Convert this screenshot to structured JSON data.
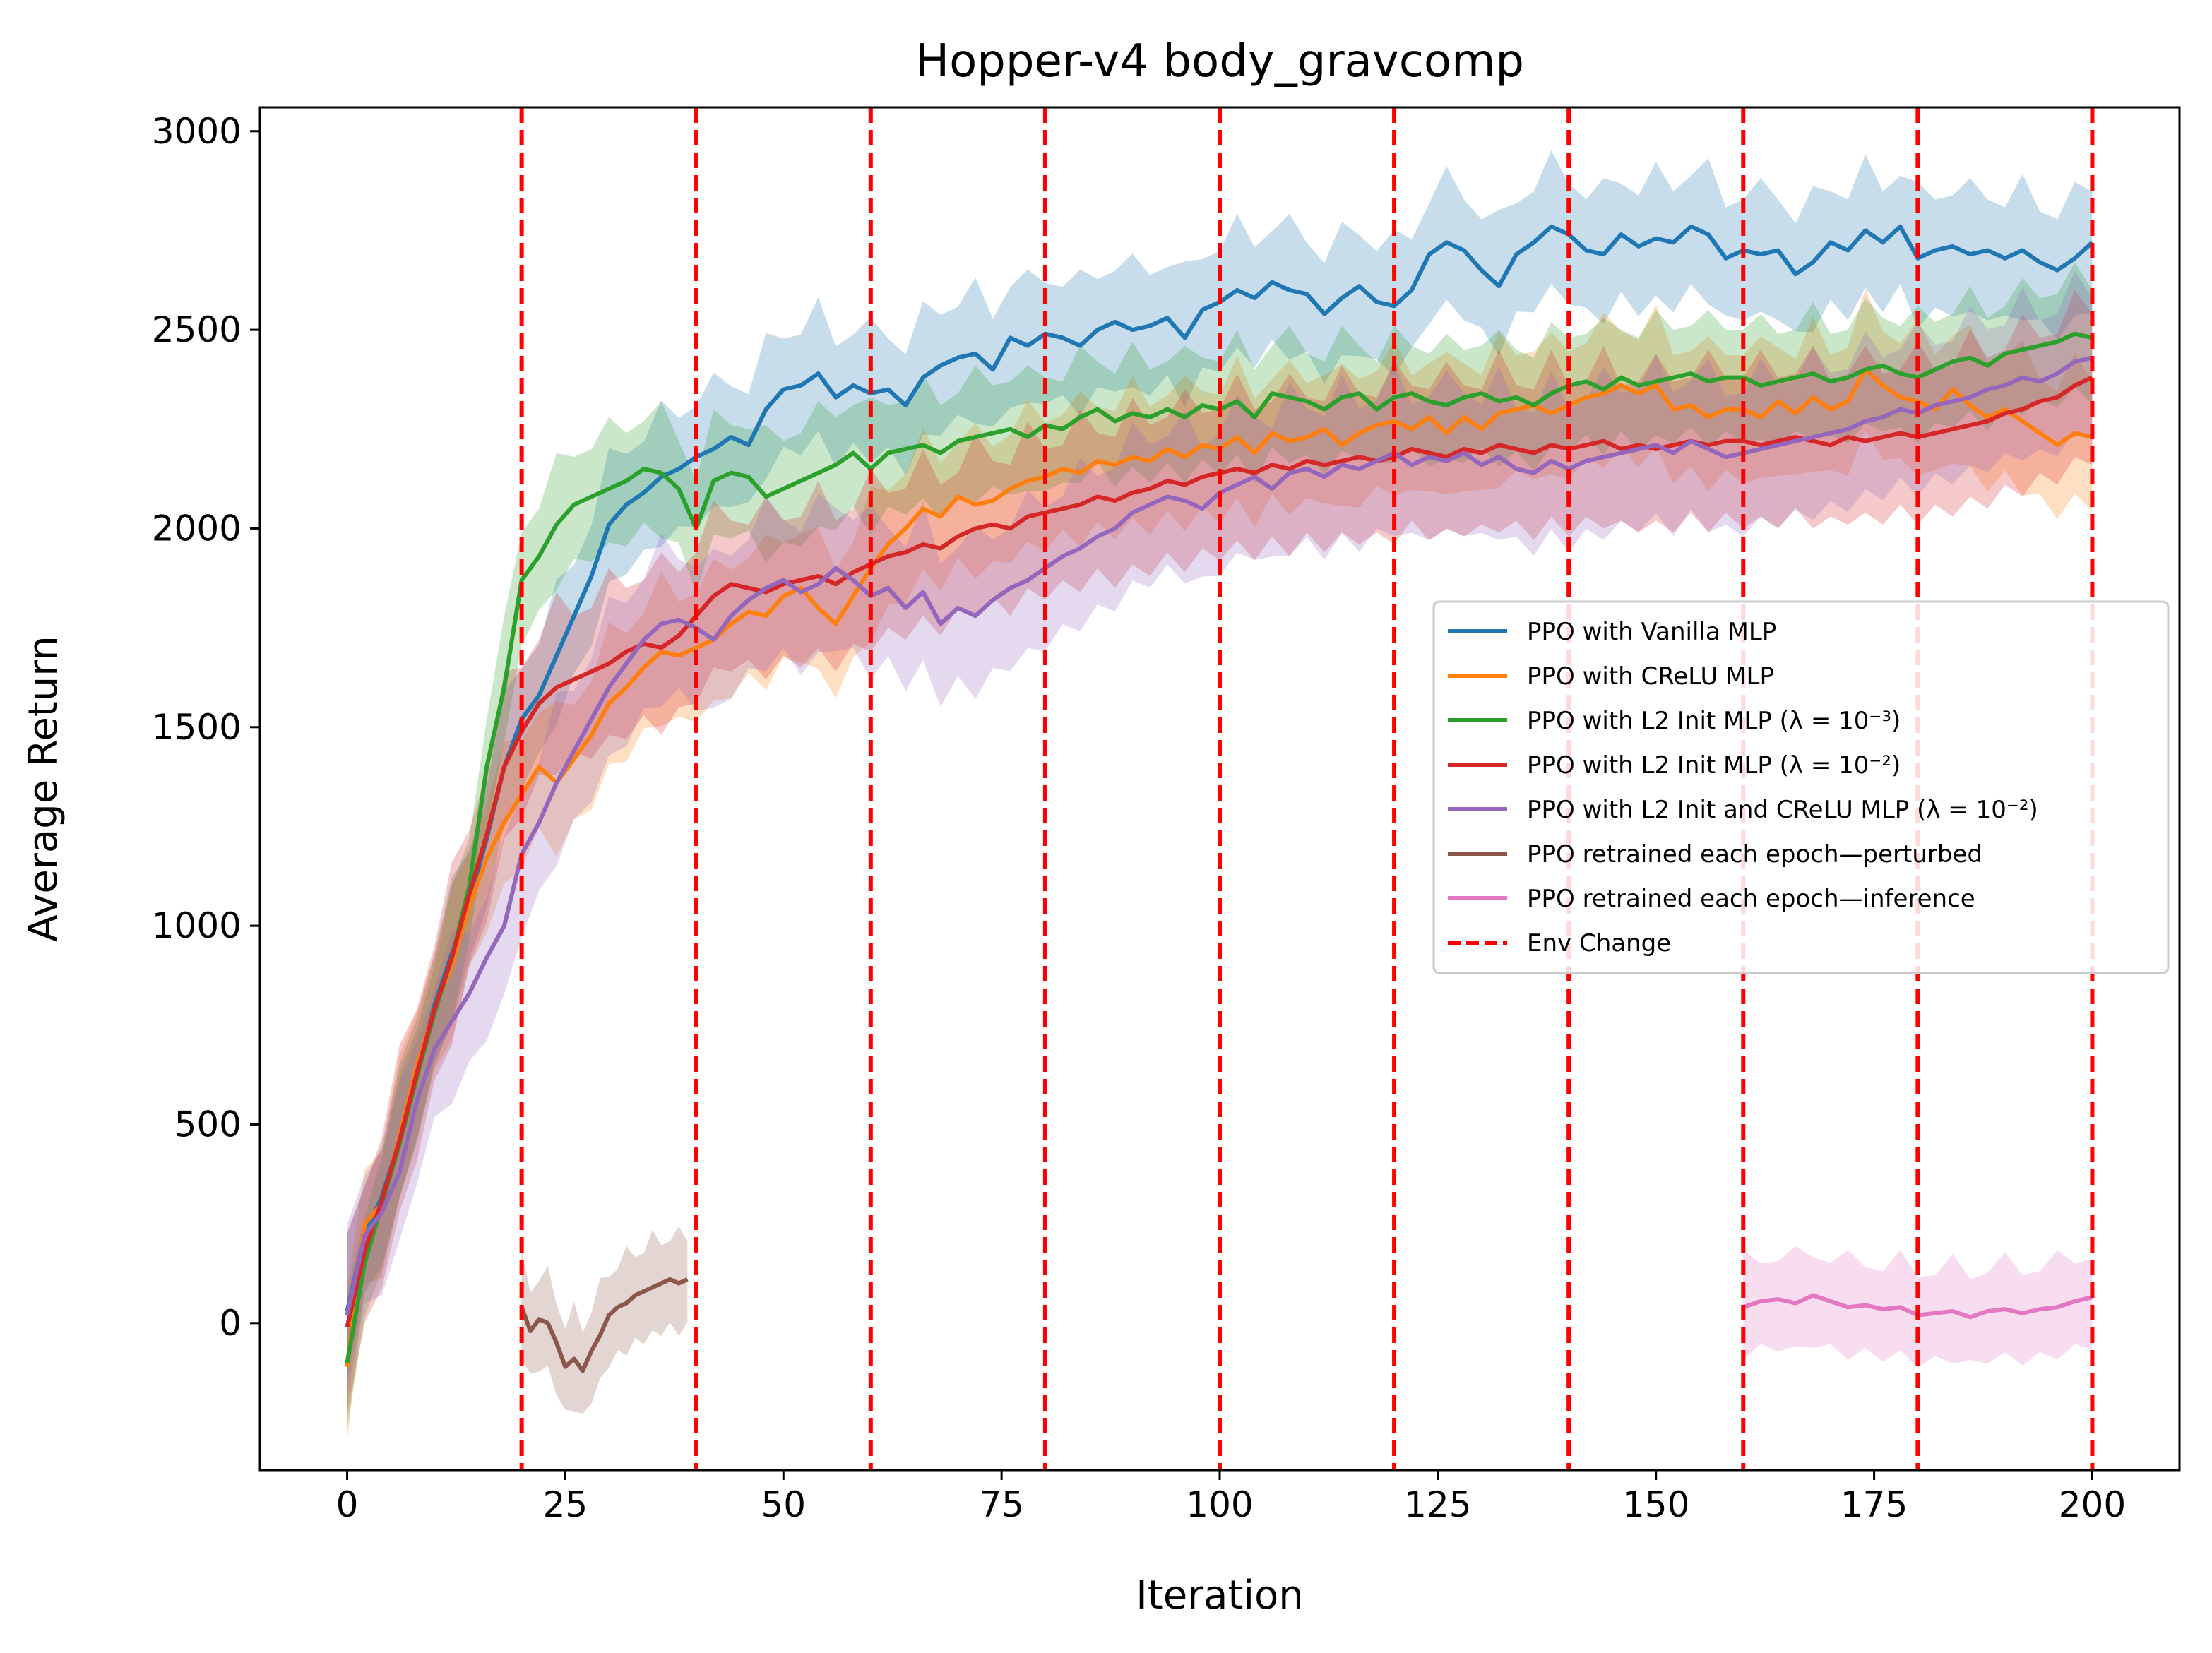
{
  "chart_data": {
    "type": "line",
    "title": "Hopper-v4 body_gravcomp",
    "xlabel": "Iteration",
    "ylabel": "Average Return",
    "xlim": [
      -10,
      210
    ],
    "ylim": [
      -370,
      3060
    ],
    "xticks": [
      0,
      25,
      50,
      75,
      100,
      125,
      150,
      175,
      200
    ],
    "yticks": [
      0,
      500,
      1000,
      1500,
      2000,
      2500,
      3000
    ],
    "grid": false,
    "legend_position": "center-right",
    "env_change_x": [
      20,
      40,
      60,
      80,
      100,
      120,
      140,
      160,
      180,
      200
    ],
    "env_change_color": "#ff0000",
    "series": [
      {
        "name": "PPO with Vanilla MLP",
        "color": "#1f77b4",
        "x": [
          0,
          2,
          4,
          6,
          8,
          10,
          12,
          14,
          16,
          18,
          20,
          22,
          24,
          26,
          28,
          30,
          32,
          34,
          36,
          38,
          40,
          42,
          44,
          46,
          48,
          50,
          52,
          54,
          56,
          58,
          60,
          62,
          64,
          66,
          68,
          70,
          72,
          74,
          76,
          78,
          80,
          82,
          84,
          86,
          88,
          90,
          92,
          94,
          96,
          98,
          100,
          102,
          104,
          106,
          108,
          110,
          112,
          114,
          116,
          118,
          120,
          122,
          124,
          126,
          128,
          130,
          132,
          134,
          136,
          138,
          140,
          142,
          144,
          146,
          148,
          150,
          152,
          154,
          156,
          158,
          160,
          162,
          164,
          166,
          168,
          170,
          172,
          174,
          176,
          178,
          180,
          182,
          184,
          186,
          188,
          190,
          192,
          194,
          196,
          198,
          200
        ],
        "y": [
          30,
          220,
          320,
          460,
          640,
          800,
          930,
          1060,
          1220,
          1400,
          1520,
          1580,
          1680,
          1780,
          1880,
          2010,
          2060,
          2090,
          2130,
          2150,
          2180,
          2200,
          2230,
          2210,
          2300,
          2350,
          2360,
          2390,
          2330,
          2360,
          2340,
          2350,
          2310,
          2380,
          2410,
          2430,
          2440,
          2400,
          2480,
          2460,
          2490,
          2480,
          2460,
          2500,
          2520,
          2500,
          2510,
          2530,
          2480,
          2550,
          2570,
          2600,
          2580,
          2620,
          2600,
          2590,
          2540,
          2580,
          2610,
          2570,
          2560,
          2600,
          2690,
          2720,
          2700,
          2650,
          2610,
          2690,
          2720,
          2760,
          2740,
          2700,
          2690,
          2740,
          2710,
          2730,
          2720,
          2760,
          2740,
          2680,
          2700,
          2690,
          2700,
          2640,
          2670,
          2720,
          2700,
          2750,
          2720,
          2760,
          2680,
          2700,
          2710,
          2690,
          2700,
          2680,
          2700,
          2670,
          2650,
          2680,
          2720
        ]
      },
      {
        "name": "PPO with CReLU MLP",
        "color": "#ff7f0e",
        "x": [
          0,
          2,
          4,
          6,
          8,
          10,
          12,
          14,
          16,
          18,
          20,
          22,
          24,
          26,
          28,
          30,
          32,
          34,
          36,
          38,
          40,
          42,
          44,
          46,
          48,
          50,
          52,
          54,
          56,
          58,
          60,
          62,
          64,
          66,
          68,
          70,
          72,
          74,
          76,
          78,
          80,
          82,
          84,
          86,
          88,
          90,
          92,
          94,
          96,
          98,
          100,
          102,
          104,
          106,
          108,
          110,
          112,
          114,
          116,
          118,
          120,
          122,
          124,
          126,
          128,
          130,
          132,
          134,
          136,
          138,
          140,
          142,
          144,
          146,
          148,
          150,
          152,
          154,
          156,
          158,
          160,
          162,
          164,
          166,
          168,
          170,
          172,
          174,
          176,
          178,
          180,
          182,
          184,
          186,
          188,
          190,
          192,
          194,
          196,
          198,
          200
        ],
        "y": [
          -110,
          250,
          300,
          470,
          650,
          790,
          900,
          1050,
          1170,
          1260,
          1330,
          1400,
          1360,
          1420,
          1480,
          1560,
          1600,
          1650,
          1690,
          1680,
          1700,
          1720,
          1760,
          1790,
          1780,
          1830,
          1850,
          1800,
          1760,
          1830,
          1900,
          1960,
          2000,
          2050,
          2030,
          2080,
          2060,
          2070,
          2100,
          2120,
          2130,
          2150,
          2140,
          2170,
          2160,
          2180,
          2170,
          2200,
          2180,
          2210,
          2200,
          2230,
          2190,
          2240,
          2220,
          2230,
          2250,
          2210,
          2240,
          2260,
          2270,
          2250,
          2280,
          2240,
          2280,
          2250,
          2290,
          2300,
          2310,
          2290,
          2310,
          2330,
          2340,
          2360,
          2340,
          2360,
          2300,
          2310,
          2280,
          2300,
          2300,
          2280,
          2320,
          2290,
          2330,
          2300,
          2320,
          2400,
          2360,
          2330,
          2320,
          2300,
          2350,
          2310,
          2280,
          2300,
          2270,
          2240,
          2210,
          2240,
          2230
        ]
      },
      {
        "name": "PPO with L2 Init MLP (λ = 10⁻³)",
        "color": "#2ca02c",
        "x": [
          0,
          2,
          4,
          6,
          8,
          10,
          12,
          14,
          16,
          18,
          20,
          22,
          24,
          26,
          28,
          30,
          32,
          34,
          36,
          38,
          40,
          42,
          44,
          46,
          48,
          50,
          52,
          54,
          56,
          58,
          60,
          62,
          64,
          66,
          68,
          70,
          72,
          74,
          76,
          78,
          80,
          82,
          84,
          86,
          88,
          90,
          92,
          94,
          96,
          98,
          100,
          102,
          104,
          106,
          108,
          110,
          112,
          114,
          116,
          118,
          120,
          122,
          124,
          126,
          128,
          130,
          132,
          134,
          136,
          138,
          140,
          142,
          144,
          146,
          148,
          150,
          152,
          154,
          156,
          158,
          160,
          162,
          164,
          166,
          168,
          170,
          172,
          174,
          176,
          178,
          180,
          182,
          184,
          186,
          188,
          190,
          192,
          194,
          196,
          198,
          200
        ],
        "y": [
          -100,
          150,
          300,
          450,
          620,
          780,
          920,
          1100,
          1400,
          1600,
          1870,
          1930,
          2010,
          2060,
          2080,
          2100,
          2120,
          2150,
          2140,
          2100,
          2000,
          2120,
          2140,
          2130,
          2080,
          2100,
          2120,
          2140,
          2160,
          2190,
          2150,
          2190,
          2200,
          2210,
          2190,
          2220,
          2230,
          2240,
          2250,
          2230,
          2260,
          2250,
          2280,
          2300,
          2270,
          2290,
          2280,
          2300,
          2280,
          2310,
          2300,
          2320,
          2280,
          2340,
          2330,
          2320,
          2300,
          2330,
          2340,
          2300,
          2330,
          2340,
          2320,
          2310,
          2330,
          2340,
          2320,
          2330,
          2310,
          2340,
          2360,
          2370,
          2350,
          2380,
          2360,
          2370,
          2380,
          2390,
          2370,
          2380,
          2380,
          2360,
          2370,
          2380,
          2390,
          2370,
          2380,
          2400,
          2410,
          2390,
          2380,
          2400,
          2420,
          2430,
          2410,
          2440,
          2450,
          2460,
          2470,
          2490,
          2480
        ]
      },
      {
        "name": "PPO with L2 Init MLP (λ = 10⁻²)",
        "color": "#d62728",
        "x": [
          0,
          2,
          4,
          6,
          8,
          10,
          12,
          14,
          16,
          18,
          20,
          22,
          24,
          26,
          28,
          30,
          32,
          34,
          36,
          38,
          40,
          42,
          44,
          46,
          48,
          50,
          52,
          54,
          56,
          58,
          60,
          62,
          64,
          66,
          68,
          70,
          72,
          74,
          76,
          78,
          80,
          82,
          84,
          86,
          88,
          90,
          92,
          94,
          96,
          98,
          100,
          102,
          104,
          106,
          108,
          110,
          112,
          114,
          116,
          118,
          120,
          122,
          124,
          126,
          128,
          130,
          132,
          134,
          136,
          138,
          140,
          142,
          144,
          146,
          148,
          150,
          152,
          154,
          156,
          158,
          160,
          162,
          164,
          166,
          168,
          170,
          172,
          174,
          176,
          178,
          180,
          182,
          184,
          186,
          188,
          190,
          192,
          194,
          196,
          198,
          200
        ],
        "y": [
          -10,
          180,
          310,
          460,
          630,
          790,
          920,
          1080,
          1230,
          1400,
          1490,
          1560,
          1600,
          1620,
          1640,
          1660,
          1690,
          1710,
          1700,
          1730,
          1780,
          1830,
          1860,
          1850,
          1840,
          1860,
          1870,
          1880,
          1860,
          1890,
          1910,
          1930,
          1940,
          1960,
          1950,
          1980,
          2000,
          2010,
          2000,
          2030,
          2040,
          2050,
          2060,
          2080,
          2070,
          2090,
          2100,
          2120,
          2110,
          2130,
          2140,
          2150,
          2140,
          2160,
          2150,
          2170,
          2160,
          2170,
          2180,
          2170,
          2180,
          2200,
          2190,
          2180,
          2200,
          2190,
          2210,
          2200,
          2190,
          2210,
          2200,
          2210,
          2220,
          2200,
          2210,
          2200,
          2210,
          2220,
          2210,
          2220,
          2220,
          2210,
          2220,
          2230,
          2220,
          2210,
          2230,
          2220,
          2230,
          2240,
          2230,
          2240,
          2250,
          2260,
          2270,
          2290,
          2300,
          2320,
          2330,
          2360,
          2380
        ]
      },
      {
        "name": "PPO with L2 Init and CReLU MLP (λ = 10⁻²)",
        "color": "#9467bd",
        "x": [
          0,
          2,
          4,
          6,
          8,
          10,
          12,
          14,
          16,
          18,
          20,
          22,
          24,
          26,
          28,
          30,
          32,
          34,
          36,
          38,
          40,
          42,
          44,
          46,
          48,
          50,
          52,
          54,
          56,
          58,
          60,
          62,
          64,
          66,
          68,
          70,
          72,
          74,
          76,
          78,
          80,
          82,
          84,
          86,
          88,
          90,
          92,
          94,
          96,
          98,
          100,
          102,
          104,
          106,
          108,
          110,
          112,
          114,
          116,
          118,
          120,
          122,
          124,
          126,
          128,
          130,
          132,
          134,
          136,
          138,
          140,
          142,
          144,
          146,
          148,
          150,
          152,
          154,
          156,
          158,
          160,
          162,
          164,
          166,
          168,
          170,
          172,
          174,
          176,
          178,
          180,
          182,
          184,
          186,
          188,
          190,
          192,
          194,
          196,
          198,
          200
        ],
        "y": [
          20,
          220,
          280,
          380,
          560,
          690,
          760,
          830,
          920,
          1000,
          1180,
          1260,
          1360,
          1440,
          1520,
          1600,
          1660,
          1720,
          1760,
          1770,
          1750,
          1720,
          1780,
          1820,
          1850,
          1870,
          1840,
          1860,
          1900,
          1870,
          1830,
          1850,
          1800,
          1840,
          1760,
          1800,
          1780,
          1820,
          1850,
          1870,
          1900,
          1930,
          1950,
          1980,
          2000,
          2040,
          2060,
          2080,
          2070,
          2050,
          2090,
          2110,
          2130,
          2100,
          2140,
          2150,
          2130,
          2160,
          2150,
          2170,
          2190,
          2160,
          2180,
          2170,
          2190,
          2160,
          2180,
          2150,
          2140,
          2170,
          2150,
          2170,
          2180,
          2190,
          2200,
          2210,
          2190,
          2220,
          2200,
          2180,
          2190,
          2200,
          2210,
          2220,
          2230,
          2240,
          2250,
          2270,
          2280,
          2300,
          2290,
          2310,
          2320,
          2330,
          2350,
          2360,
          2380,
          2370,
          2390,
          2420,
          2430
        ]
      },
      {
        "name": "PPO retrained each epoch—perturbed",
        "color": "#8c564b",
        "x": [
          20,
          21,
          22,
          23,
          24,
          25,
          26,
          27,
          28,
          29,
          30,
          31,
          32,
          33,
          34,
          35,
          36,
          37,
          38,
          39
        ],
        "y": [
          40,
          -20,
          10,
          0,
          -50,
          -110,
          -90,
          -120,
          -70,
          -30,
          20,
          40,
          50,
          70,
          80,
          90,
          100,
          110,
          100,
          110
        ]
      },
      {
        "name": "PPO retrained each epoch—inference",
        "color": "#e377c2",
        "x": [
          160,
          162,
          164,
          166,
          168,
          170,
          172,
          174,
          176,
          178,
          180,
          182,
          184,
          186,
          188,
          190,
          192,
          194,
          196,
          198,
          200
        ],
        "y": [
          40,
          55,
          60,
          50,
          70,
          55,
          40,
          45,
          35,
          40,
          20,
          25,
          30,
          15,
          30,
          35,
          25,
          35,
          40,
          55,
          65
        ]
      }
    ],
    "env_change_label": "Env Change"
  }
}
